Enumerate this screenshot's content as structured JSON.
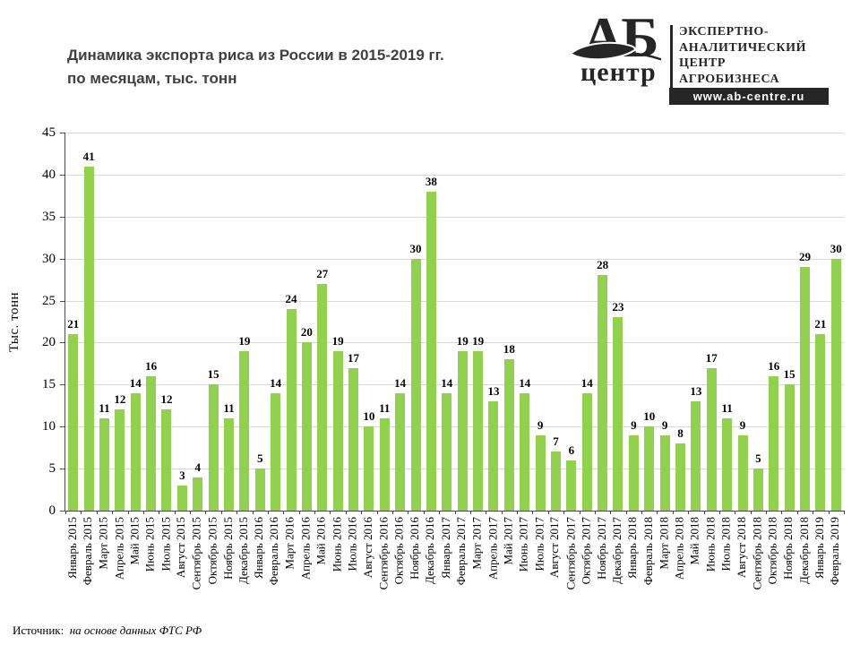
{
  "header": {
    "title_line1": "Динамика экспорта риса из России в 2015-2019 гг.",
    "title_line2": "по месяцам, тыс. тонн"
  },
  "logo": {
    "brand_top": "АБ",
    "brand_bottom": "центр",
    "org_lines": [
      "ЭКСПЕРТНО-",
      "АНАЛИТИЧЕСКИЙ",
      "ЦЕНТР",
      "АГРОБИЗНЕСА"
    ],
    "url": "www.ab-centre.ru"
  },
  "chart_data": {
    "type": "bar",
    "title": "Динамика экспорта риса из России в 2015-2019 гг. по месяцам, тыс. тонн",
    "xlabel": "",
    "ylabel": "Тыс. тонн",
    "ylim": [
      0,
      45
    ],
    "ytick_step": 5,
    "grid": true,
    "legend": false,
    "data_labels": true,
    "bar_color": "#92D050",
    "categories": [
      "Январь 2015",
      "Февраль 2015",
      "Март 2015",
      "Апрель 2015",
      "Май 2015",
      "Июнь 2015",
      "Июль 2015",
      "Август 2015",
      "Сентябрь 2015",
      "Октябрь 2015",
      "Ноябрь 2015",
      "Декабрь 2015",
      "Январь 2016",
      "Февраль 2016",
      "Март 2016",
      "Апрель 2016",
      "Май 2016",
      "Июнь 2016",
      "Июль 2016",
      "Август 2016",
      "Сентябрь 2016",
      "Октябрь 2016",
      "Ноябрь 2016",
      "Декабрь 2016",
      "Январь 2017",
      "Февраль 2017",
      "Март 2017",
      "Апрель 2017",
      "Май 2017",
      "Июнь 2017",
      "Июль 2017",
      "Август 2017",
      "Сентябрь 2017",
      "Октябрь 2017",
      "Ноябрь 2017",
      "Декабрь 2017",
      "Январь 2018",
      "Февраль 2018",
      "Март 2018",
      "Апрель 2018",
      "Май 2018",
      "Июнь 2018",
      "Июль 2018",
      "Август 2018",
      "Сентябрь 2018",
      "Октябрь 2018",
      "Ноябрь 2018",
      "Декабрь 2018",
      "Январь 2019",
      "Февраль 2019"
    ],
    "values": [
      21,
      41,
      11,
      12,
      14,
      16,
      12,
      3,
      4,
      15,
      11,
      19,
      5,
      14,
      24,
      20,
      27,
      19,
      17,
      10,
      11,
      14,
      30,
      38,
      14,
      19,
      19,
      13,
      18,
      14,
      9,
      7,
      6,
      14,
      28,
      23,
      9,
      10,
      9,
      8,
      13,
      17,
      11,
      9,
      5,
      16,
      15,
      29,
      21,
      30
    ]
  },
  "footer": {
    "source_label": "Источник:",
    "source_text": "на основе данных ФТС РФ"
  }
}
